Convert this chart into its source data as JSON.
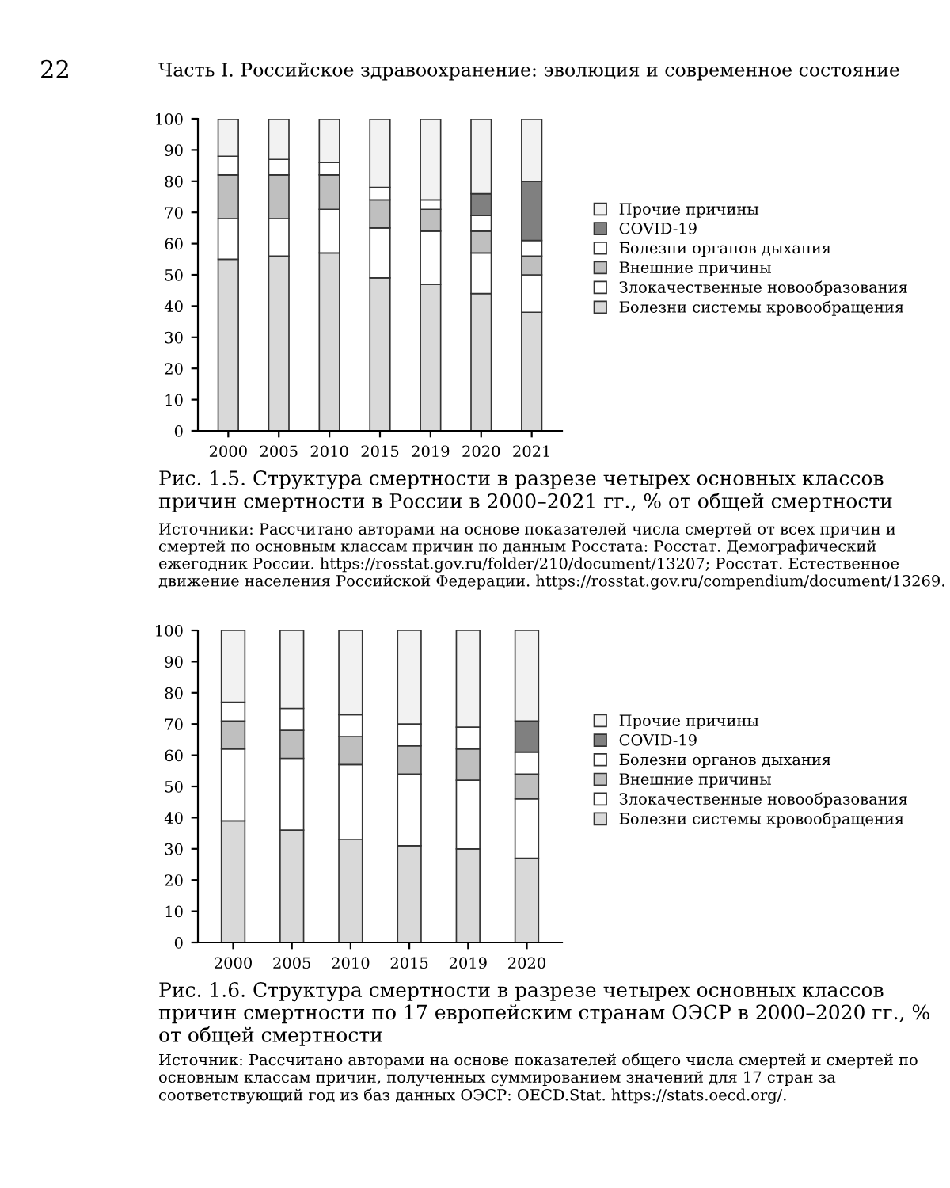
{
  "chart_data": [
    {
      "type": "bar",
      "stacked": true,
      "title": "Рис. 1.5. Структура смертности в разрезе четырех основных классов причин смертности в России в 2000–2021 гг., % от общей смертности",
      "categories": [
        "2000",
        "2005",
        "2010",
        "2015",
        "2019",
        "2020",
        "2021"
      ],
      "series": [
        {
          "name": "Болезни системы кровообращения",
          "color": "#d9d9d9",
          "values": [
            55,
            56,
            57,
            49,
            47,
            44,
            38
          ]
        },
        {
          "name": "Злокачественные новообразования",
          "color": "#ffffff",
          "values": [
            13,
            12,
            14,
            16,
            17,
            13,
            12
          ]
        },
        {
          "name": "Внешние причины",
          "color": "#bfbfbf",
          "values": [
            14,
            14,
            11,
            9,
            7,
            7,
            6
          ]
        },
        {
          "name": "Болезни органов дыхания",
          "color": "#ffffff",
          "values": [
            6,
            5,
            4,
            4,
            3,
            5,
            5
          ]
        },
        {
          "name": "COVID-19",
          "color": "#808080",
          "values": [
            null,
            null,
            null,
            null,
            null,
            7,
            19
          ]
        },
        {
          "name": "Прочие причины",
          "color": "#f2f2f2",
          "values": [
            12,
            13,
            14,
            22,
            26,
            24,
            20
          ]
        }
      ],
      "ylim": [
        0,
        100
      ],
      "yticks": [
        0,
        10,
        20,
        30,
        40,
        50,
        60,
        70,
        80,
        90,
        100
      ],
      "grid": false,
      "legend": "right",
      "annotations": [
        "22",
        "Часть I. Российское здравоохранение: эволюция и современное состояние",
        "Источники: Рассчитано авторами на основе показателей числа смертей от всех причин и смертей по основным классам причин по данным Росстата: Росстат. Демографический ежегодник России. https://rosstat.gov.ru/folder/210/document/13207; Росстат. Естественное движение населения Российской Федерации. https://rosstat.gov.ru/compendium/document/13269."
      ]
    },
    {
      "type": "bar",
      "stacked": true,
      "title": "Рис. 1.6. Структура смертности в разрезе четырех основных классов причин смертности по 17 европейским странам ОЭСР в 2000–2020 гг., % от общей смертности",
      "categories": [
        "2000",
        "2005",
        "2010",
        "2015",
        "2019",
        "2020"
      ],
      "series": [
        {
          "name": "Болезни системы кровообращения",
          "color": "#d9d9d9",
          "values": [
            39,
            36,
            33,
            31,
            30,
            27
          ]
        },
        {
          "name": "Злокачественные новообразования",
          "color": "#ffffff",
          "values": [
            23,
            23,
            24,
            23,
            22,
            19
          ]
        },
        {
          "name": "Внешние причины",
          "color": "#bfbfbf",
          "values": [
            9,
            9,
            9,
            9,
            10,
            8
          ]
        },
        {
          "name": "Болезни органов дыхания",
          "color": "#ffffff",
          "values": [
            6,
            7,
            7,
            7,
            7,
            7
          ]
        },
        {
          "name": "COVID-19",
          "color": "#808080",
          "values": [
            null,
            null,
            null,
            null,
            null,
            10
          ]
        },
        {
          "name": "Прочие причины",
          "color": "#f2f2f2",
          "values": [
            23,
            25,
            27,
            30,
            31,
            29
          ]
        }
      ],
      "ylim": [
        0,
        100
      ],
      "yticks": [
        0,
        10,
        20,
        30,
        40,
        50,
        60,
        70,
        80,
        90,
        100
      ],
      "grid": false,
      "legend": "right",
      "annotations": [
        "Источник: Рассчитано авторами на основе показателей общего числа смертей и смертей по основным классам причин, полученных суммированием значений для 17 стран за соответствующий год из баз данных ОЭСР: OECD.Stat. https://stats.oecd.org/."
      ]
    }
  ]
}
